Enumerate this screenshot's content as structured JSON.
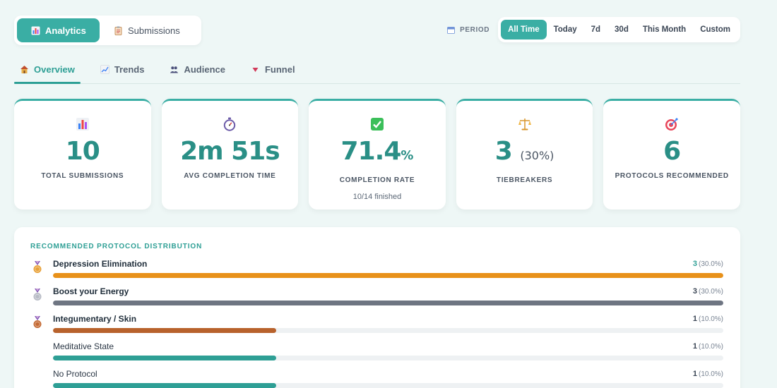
{
  "main_toggle": {
    "analytics": {
      "label": "Analytics",
      "icon": "bar-chart-icon"
    },
    "submissions": {
      "label": "Submissions",
      "icon": "clipboard-icon"
    }
  },
  "period": {
    "label": "PERIOD",
    "icon": "calendar-icon",
    "options": [
      "All Time",
      "Today",
      "7d",
      "30d",
      "This Month",
      "Custom"
    ],
    "selected": "All Time"
  },
  "tabs": [
    {
      "label": "Overview",
      "icon": "house-icon",
      "active": true
    },
    {
      "label": "Trends",
      "icon": "line-chart-icon",
      "active": false
    },
    {
      "label": "Audience",
      "icon": "people-icon",
      "active": false
    },
    {
      "label": "Funnel",
      "icon": "funnel-icon",
      "active": false
    }
  ],
  "stats": [
    {
      "icon": "bar-chart-icon",
      "value": "10",
      "label": "TOTAL SUBMISSIONS"
    },
    {
      "icon": "stopwatch-icon",
      "value": "2m 51s",
      "label": "AVG COMPLETION TIME"
    },
    {
      "icon": "checkmark-icon",
      "value": "71.4",
      "unit": "%",
      "label": "COMPLETION RATE",
      "note": "10/14 finished"
    },
    {
      "icon": "scales-icon",
      "value": "3",
      "sub": "(30%)",
      "label": "TIEBREAKERS"
    },
    {
      "icon": "target-icon",
      "value": "6",
      "label": "PROTOCOLS RECOMMENDED"
    }
  ],
  "distribution": {
    "title": "RECOMMENDED PROTOCOL DISTRIBUTION",
    "rows": [
      {
        "name": "Depression Elimination",
        "count": "3",
        "pct": "(30.0%)",
        "fraction": 1.0,
        "medal": "gold-medal-icon",
        "color": "#e8911a"
      },
      {
        "name": "Boost your Energy",
        "count": "3",
        "pct": "(30.0%)",
        "fraction": 1.0,
        "medal": "silver-medal-icon",
        "color": "#6e7582"
      },
      {
        "name": "Integumentary / Skin",
        "count": "1",
        "pct": "(10.0%)",
        "fraction": 0.333,
        "medal": "bronze-medal-icon",
        "color": "#b8622c"
      },
      {
        "name": "Meditative State",
        "count": "1",
        "pct": "(10.0%)",
        "fraction": 0.333,
        "medal": "",
        "color": "#2e9f95"
      },
      {
        "name": "No Protocol",
        "count": "1",
        "pct": "(10.0%)",
        "fraction": 0.333,
        "medal": "",
        "color": "#2e9f95"
      }
    ]
  },
  "colors": {
    "accent": "#3aaea4",
    "accent_dark": "#2a8f86"
  }
}
